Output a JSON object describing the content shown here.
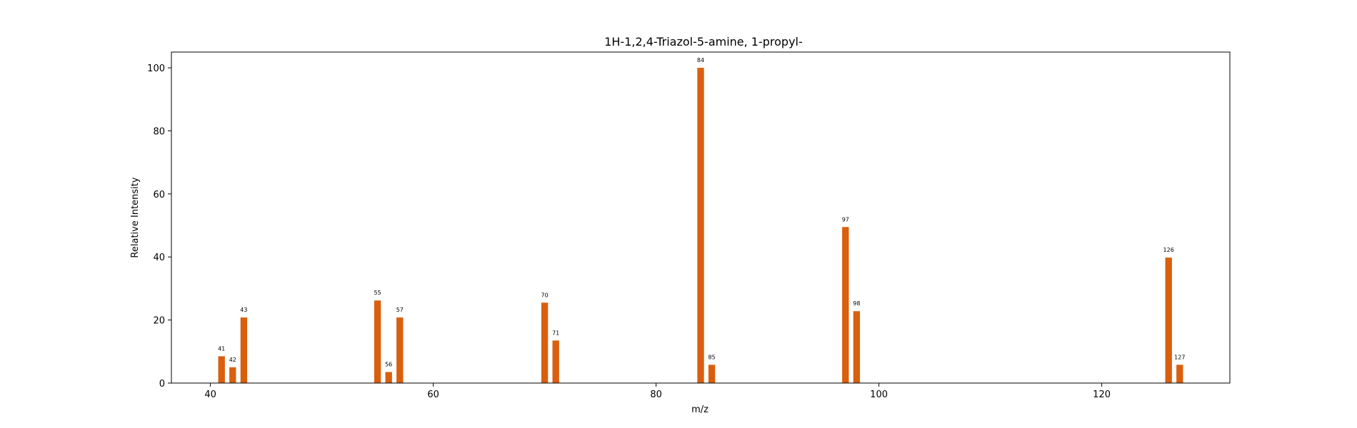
{
  "chart_data": {
    "type": "bar",
    "title": "1H-1,2,4-Triazol-5-amine, 1-propyl-",
    "xlabel": "m/z",
    "ylabel": "Relative Intensity",
    "xlim": [
      36.5,
      131.5
    ],
    "ylim": [
      0,
      105
    ],
    "xticks": [
      40,
      60,
      80,
      100,
      120
    ],
    "yticks": [
      0,
      20,
      40,
      60,
      80,
      100
    ],
    "bar_color": "#d95f0e",
    "grid": false,
    "points": [
      {
        "x": 41,
        "y": 8.5,
        "label": "41"
      },
      {
        "x": 42,
        "y": 5.0,
        "label": "42"
      },
      {
        "x": 43,
        "y": 20.8,
        "label": "43"
      },
      {
        "x": 55,
        "y": 26.2,
        "label": "55"
      },
      {
        "x": 56,
        "y": 3.5,
        "label": "56"
      },
      {
        "x": 57,
        "y": 20.8,
        "label": "57"
      },
      {
        "x": 70,
        "y": 25.5,
        "label": "70"
      },
      {
        "x": 71,
        "y": 13.5,
        "label": "71"
      },
      {
        "x": 84,
        "y": 100.0,
        "label": "84"
      },
      {
        "x": 85,
        "y": 5.8,
        "label": "85"
      },
      {
        "x": 97,
        "y": 49.5,
        "label": "97"
      },
      {
        "x": 98,
        "y": 22.8,
        "label": "98"
      },
      {
        "x": 126,
        "y": 39.8,
        "label": "126"
      },
      {
        "x": 127,
        "y": 5.8,
        "label": "127"
      }
    ]
  }
}
